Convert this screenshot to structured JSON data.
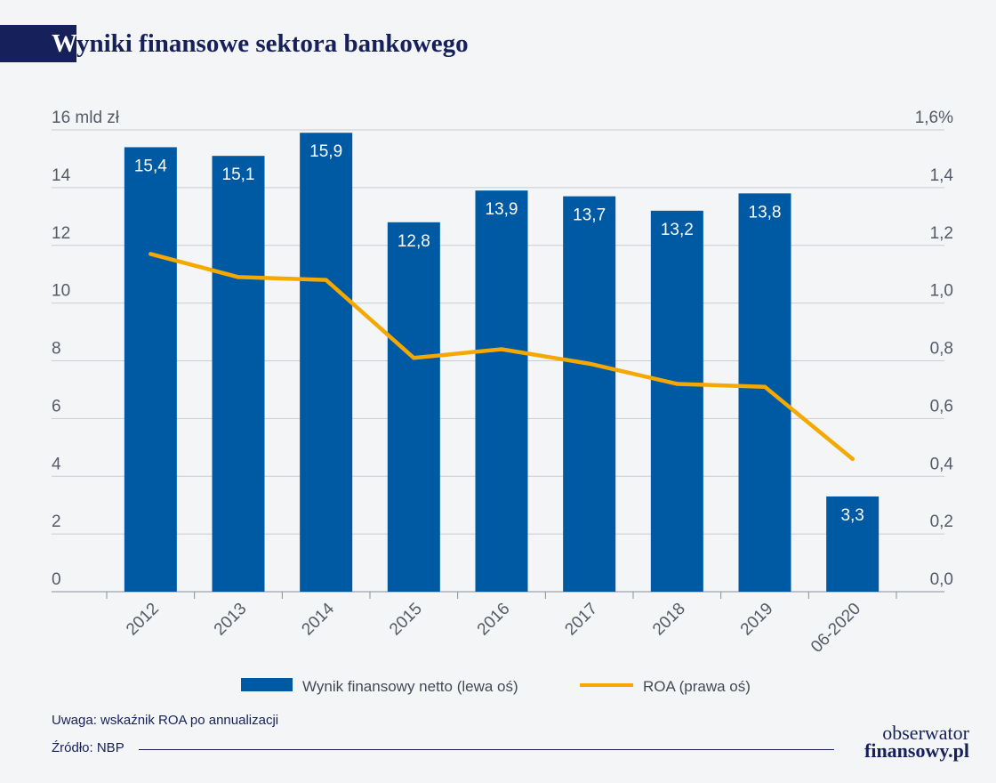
{
  "title": {
    "first_letter": "W",
    "rest": "yniki finansowe sektora bankowego"
  },
  "note": "Uwaga: wskaźnik ROA po annualizacji",
  "source": "Źródło: NBP",
  "logo": {
    "line1": "obserwator",
    "line2": "finansowy.pl"
  },
  "colors": {
    "bar": "#0059a3",
    "line": "#f5a800",
    "title": "#16205b",
    "axis": "#9aa0a8"
  },
  "chart_data": {
    "type": "bar+line",
    "categories": [
      "2012",
      "2013",
      "2014",
      "2015",
      "2016",
      "2017",
      "2018",
      "2019",
      "06-2020"
    ],
    "series": [
      {
        "name": "Wynik finansowy netto (lewa oś)",
        "type": "bar",
        "axis": "left",
        "values": [
          15.4,
          15.1,
          15.9,
          12.8,
          13.9,
          13.7,
          13.2,
          13.8,
          3.3
        ],
        "labels": [
          "15,4",
          "15,1",
          "15,9",
          "12,8",
          "13,9",
          "13,7",
          "13,2",
          "13,8",
          "3,3"
        ]
      },
      {
        "name": "ROA (prawa oś)",
        "type": "line",
        "axis": "right",
        "values": [
          1.17,
          1.09,
          1.08,
          0.81,
          0.84,
          0.79,
          0.72,
          0.71,
          0.46
        ]
      }
    ],
    "left_axis": {
      "ylim": [
        0,
        16
      ],
      "ticks": [
        "0",
        "2",
        "4",
        "6",
        "8",
        "10",
        "12",
        "14",
        "16 mld zł"
      ]
    },
    "right_axis": {
      "ylim": [
        0,
        1.6
      ],
      "ticks": [
        "0,0",
        "0,2",
        "0,4",
        "0,6",
        "0,8",
        "1,0",
        "1,2",
        "1,4",
        "1,6%"
      ]
    },
    "grid": true,
    "legend_position": "bottom"
  }
}
